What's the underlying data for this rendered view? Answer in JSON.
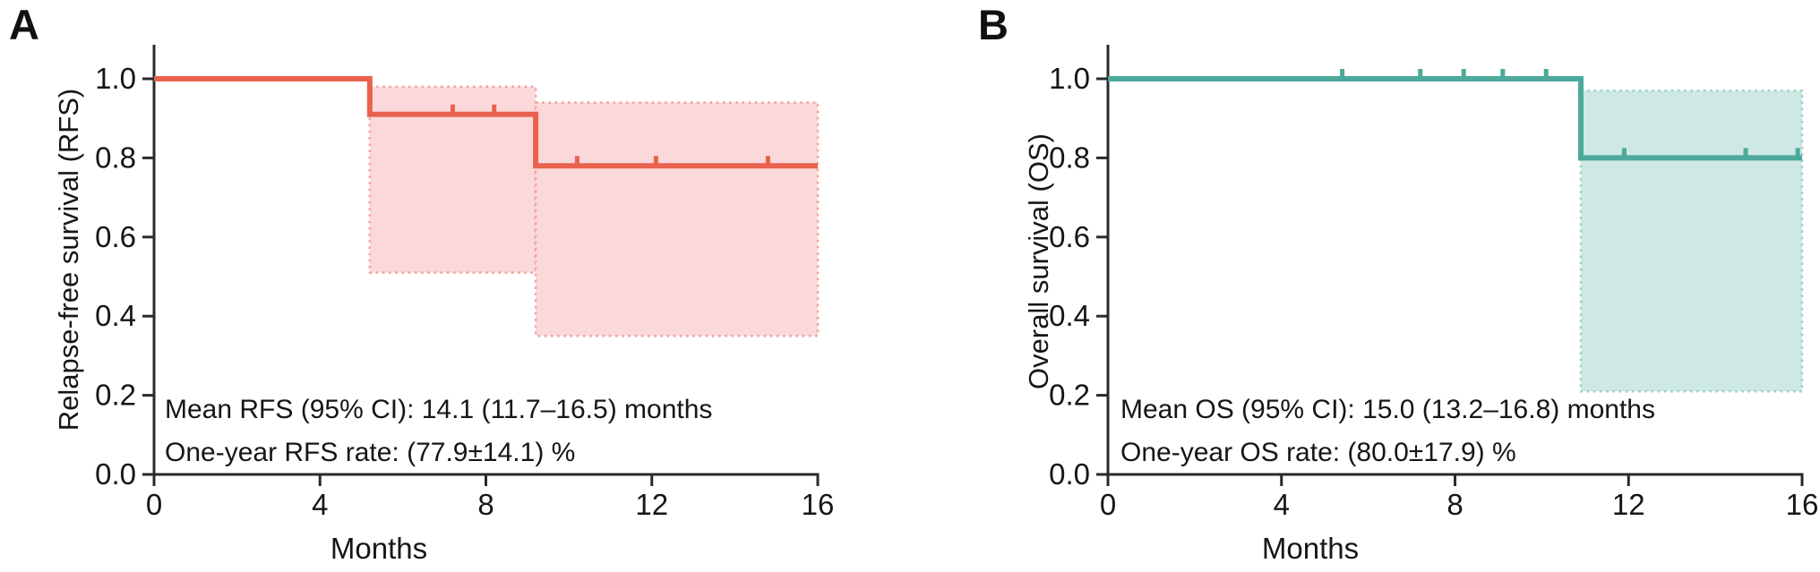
{
  "figure": {
    "background": "#ffffff",
    "axis_color": "#2a2a2a",
    "text_color": "#161616"
  },
  "chart_data": [
    {
      "type": "line",
      "subtype": "kaplan-meier-step",
      "panel_label": "A",
      "xlabel": "Months",
      "ylabel": "Relapse-free survival (RFS)",
      "xlim": [
        0,
        16
      ],
      "ylim": [
        0,
        1
      ],
      "x_ticks": [
        0,
        4,
        8,
        12,
        16
      ],
      "x_tick_labels": [
        "0",
        "4",
        "8",
        "12",
        "16"
      ],
      "y_ticks": [
        0,
        0.2,
        0.4,
        0.6,
        0.8,
        1.0
      ],
      "y_tick_labels": [
        "0.0",
        "0.2",
        "0.4",
        "0.6",
        "0.8",
        "1.0"
      ],
      "grid": false,
      "legend": "none",
      "series": [
        {
          "name": "RFS",
          "color": "#e8624e",
          "points": [
            [
              0,
              1.0
            ],
            [
              5.2,
              1.0
            ],
            [
              5.2,
              0.91
            ],
            [
              9.2,
              0.91
            ],
            [
              9.2,
              0.78
            ],
            [
              16,
              0.78
            ]
          ]
        }
      ],
      "censor_marks": [
        [
          7.2,
          0.91
        ],
        [
          8.2,
          0.91
        ],
        [
          10.2,
          0.78
        ],
        [
          12.1,
          0.78
        ],
        [
          14.8,
          0.78
        ]
      ],
      "ci_band": {
        "fill": "#fbd9da",
        "border": "#f1a49f",
        "segments": [
          {
            "x_from": 5.2,
            "x_to": 9.2,
            "lower": 0.51,
            "upper": 0.98
          },
          {
            "x_from": 9.2,
            "x_to": 16,
            "lower": 0.35,
            "upper": 0.94
          }
        ]
      },
      "annotations": [
        "Mean RFS (95% CI): 14.1 (11.7–16.5) months",
        "One-year RFS rate: (77.9±14.1) %"
      ]
    },
    {
      "type": "line",
      "subtype": "kaplan-meier-step",
      "panel_label": "B",
      "xlabel": "Months",
      "ylabel": "Overall survival (OS)",
      "xlim": [
        0,
        16
      ],
      "ylim": [
        0,
        1
      ],
      "x_ticks": [
        0,
        4,
        8,
        12,
        16
      ],
      "x_tick_labels": [
        "0",
        "4",
        "8",
        "12",
        "16"
      ],
      "y_ticks": [
        0,
        0.2,
        0.4,
        0.6,
        0.8,
        1.0
      ],
      "y_tick_labels": [
        "0.0",
        "0.2",
        "0.4",
        "0.6",
        "0.8",
        "1.0"
      ],
      "grid": false,
      "legend": "none",
      "series": [
        {
          "name": "OS",
          "color": "#4ca99c",
          "points": [
            [
              0,
              1.0
            ],
            [
              10.9,
              1.0
            ],
            [
              10.9,
              0.8
            ],
            [
              16,
              0.8
            ]
          ]
        }
      ],
      "censor_marks": [
        [
          5.4,
          1.0
        ],
        [
          7.2,
          1.0
        ],
        [
          8.2,
          1.0
        ],
        [
          9.1,
          1.0
        ],
        [
          10.1,
          1.0
        ],
        [
          11.9,
          0.8
        ],
        [
          14.7,
          0.8
        ],
        [
          15.9,
          0.8
        ]
      ],
      "ci_band": {
        "fill": "#cee8e3",
        "border": "#9ad2c8",
        "segments": [
          {
            "x_from": 10.9,
            "x_to": 16,
            "lower": 0.21,
            "upper": 0.97
          }
        ]
      },
      "annotations": [
        "Mean OS (95% CI): 15.0 (13.2–16.8) months",
        "One-year OS rate: (80.0±17.9) %"
      ]
    }
  ]
}
